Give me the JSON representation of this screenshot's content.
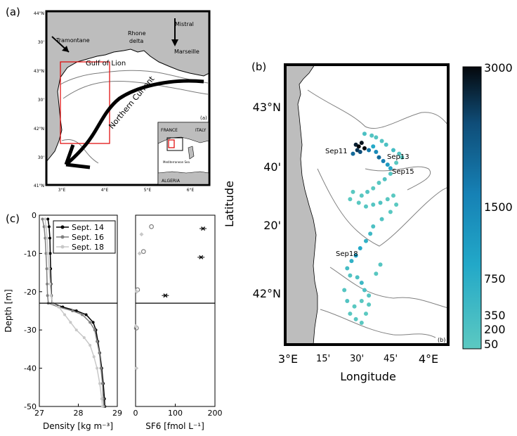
{
  "panel_a": {
    "label": "(a)",
    "lat_ticks": [
      "44°N",
      "30'",
      "43°N",
      "30'",
      "42°N",
      "30'",
      "41°N"
    ],
    "lon_ticks": [
      "3°E",
      "4°E",
      "5°E",
      "6°E"
    ],
    "names": {
      "tramontane": "Tramontane",
      "rhone": "Rhone",
      "delta": "delta",
      "mistral": "Mistral",
      "marseille": "Marseille",
      "gulf": "Gulf of Lion",
      "current": "Northern Current"
    },
    "inset": {
      "label": "(a)",
      "france": "FRANCE",
      "italy": "ITALY",
      "algeria": "ALGERIA",
      "sea": "Mediterranean Sea"
    }
  },
  "panel_b": {
    "label": "(b)",
    "corner_label": "(b)",
    "ylabel": "Latitude",
    "xlabel": "Longitude",
    "lat_ticks": [
      "43°N",
      "40'",
      "20'",
      "42°N"
    ],
    "lon_ticks": [
      "3°E",
      "15'",
      "30'",
      "45'",
      "4°E"
    ],
    "stations": [
      "Sep11",
      "Sep13",
      "Sep15",
      "Sep18"
    ],
    "colorbar_ticks": [
      "3000",
      "1500",
      "750",
      "350",
      "200",
      "50"
    ],
    "colors": {
      "low": "#4fc7c0",
      "mid": "#1a8cc0",
      "high": "#0a1420"
    }
  },
  "panel_c": {
    "label": "(c)",
    "ylabel": "Depth [m]",
    "xlabel_density": "Density [kg m⁻³]",
    "xlabel_sf6": "SF6 [fmol L⁻¹]",
    "mld_depth": -23
  },
  "chart_data": [
    {
      "type": "line",
      "title": "",
      "xlabel": "Density [kg m⁻³]",
      "ylabel": "Depth [m]",
      "xlim": [
        27,
        29
      ],
      "ylim": [
        -50,
        0
      ],
      "x_ticks": [
        27,
        28,
        29
      ],
      "y_ticks": [
        0,
        -10,
        -20,
        -30,
        -40,
        -50
      ],
      "legend_position": "top-right",
      "series": [
        {
          "name": "Sept. 14",
          "color": "#000000",
          "points": [
            [
              27.22,
              -1
            ],
            [
              27.25,
              -3
            ],
            [
              27.27,
              -6
            ],
            [
              27.28,
              -10
            ],
            [
              27.29,
              -14
            ],
            [
              27.3,
              -18
            ],
            [
              27.31,
              -21
            ],
            [
              27.33,
              -23
            ],
            [
              27.6,
              -24
            ],
            [
              27.95,
              -25
            ],
            [
              28.2,
              -26
            ],
            [
              28.38,
              -28
            ],
            [
              28.45,
              -30
            ],
            [
              28.5,
              -33
            ],
            [
              28.55,
              -36
            ],
            [
              28.6,
              -40
            ],
            [
              28.64,
              -44
            ],
            [
              28.67,
              -48
            ],
            [
              28.68,
              -50
            ]
          ]
        },
        {
          "name": "Sept. 16",
          "color": "#808080",
          "points": [
            [
              27.08,
              -1
            ],
            [
              27.12,
              -3
            ],
            [
              27.15,
              -6
            ],
            [
              27.17,
              -10
            ],
            [
              27.19,
              -14
            ],
            [
              27.2,
              -18
            ],
            [
              27.21,
              -21
            ],
            [
              27.23,
              -23
            ],
            [
              27.5,
              -24
            ],
            [
              27.85,
              -25
            ],
            [
              28.1,
              -26
            ],
            [
              28.3,
              -28
            ],
            [
              28.42,
              -30
            ],
            [
              28.48,
              -33
            ],
            [
              28.54,
              -36
            ],
            [
              28.58,
              -40
            ],
            [
              28.62,
              -44
            ],
            [
              28.64,
              -48
            ],
            [
              28.66,
              -50
            ]
          ]
        },
        {
          "name": "Sept. 18",
          "color": "#c8c8c8",
          "points": [
            [
              27.15,
              -1
            ],
            [
              27.17,
              -3
            ],
            [
              27.2,
              -6
            ],
            [
              27.22,
              -10
            ],
            [
              27.25,
              -14
            ],
            [
              27.28,
              -18
            ],
            [
              27.3,
              -21
            ],
            [
              27.34,
              -23
            ],
            [
              27.5,
              -24
            ],
            [
              27.65,
              -26
            ],
            [
              27.8,
              -28
            ],
            [
              27.95,
              -30
            ],
            [
              28.15,
              -32
            ],
            [
              28.3,
              -34
            ],
            [
              28.4,
              -37
            ],
            [
              28.48,
              -40
            ],
            [
              28.55,
              -44
            ],
            [
              28.6,
              -48
            ],
            [
              28.62,
              -50
            ]
          ]
        }
      ],
      "hline": -23
    },
    {
      "type": "scatter",
      "title": "",
      "xlabel": "SF6 [fmol L⁻¹]",
      "xlim": [
        0,
        200
      ],
      "ylim": [
        -50,
        0
      ],
      "x_ticks": [
        0,
        100,
        200
      ],
      "series": [
        {
          "name": "Sept. 14",
          "color": "#000000",
          "marker": "x",
          "points": [
            [
              170,
              -3.5
            ],
            [
              165,
              -11
            ],
            [
              75,
              -21
            ]
          ]
        },
        {
          "name": "Sept. 16",
          "color": "#808080",
          "marker": "o",
          "points": [
            [
              40,
              -3
            ],
            [
              20,
              -9.5
            ],
            [
              5,
              -19.5
            ],
            [
              2,
              -29.5
            ]
          ]
        },
        {
          "name": "Sept. 18",
          "color": "#c8c8c8",
          "marker": "d",
          "points": [
            [
              15,
              -5
            ],
            [
              10,
              -10
            ],
            [
              3,
              -20
            ],
            [
              1,
              -29
            ],
            [
              2,
              -40
            ]
          ]
        }
      ],
      "hline": -23
    },
    {
      "type": "scatter",
      "title": "",
      "xlabel": "Longitude",
      "ylabel": "Latitude",
      "xlim": [
        2.97,
        4.1
      ],
      "ylim": [
        41.63,
        43.17
      ],
      "colorbar": {
        "label_ticks": [
          50,
          200,
          350,
          750,
          1500,
          3000
        ],
        "range": [
          50,
          3000
        ]
      },
      "points": [
        [
          3.46,
          42.73,
          2800
        ],
        [
          3.48,
          42.72,
          3000
        ],
        [
          3.5,
          42.74,
          2900
        ],
        [
          3.47,
          42.7,
          2600
        ],
        [
          3.52,
          42.71,
          3000
        ],
        [
          3.44,
          42.68,
          2000
        ],
        [
          3.49,
          42.69,
          2400
        ],
        [
          3.55,
          42.7,
          1800
        ],
        [
          3.58,
          42.72,
          900
        ],
        [
          3.6,
          42.69,
          1500
        ],
        [
          3.62,
          42.66,
          2000
        ],
        [
          3.65,
          42.64,
          1700
        ],
        [
          3.68,
          42.62,
          1200
        ],
        [
          3.7,
          42.6,
          900
        ],
        [
          3.52,
          42.79,
          300
        ],
        [
          3.57,
          42.78,
          200
        ],
        [
          3.6,
          42.77,
          150
        ],
        [
          3.64,
          42.75,
          200
        ],
        [
          3.67,
          42.73,
          300
        ],
        [
          3.72,
          42.7,
          400
        ],
        [
          3.76,
          42.68,
          200
        ],
        [
          3.78,
          42.66,
          100
        ],
        [
          3.74,
          42.63,
          80
        ],
        [
          3.7,
          42.57,
          150
        ],
        [
          3.66,
          42.54,
          200
        ],
        [
          3.62,
          42.52,
          100
        ],
        [
          3.58,
          42.49,
          80
        ],
        [
          3.54,
          42.47,
          150
        ],
        [
          3.5,
          42.45,
          100
        ],
        [
          3.44,
          42.47,
          80
        ],
        [
          3.42,
          42.43,
          60
        ],
        [
          3.48,
          42.41,
          90
        ],
        [
          3.53,
          42.39,
          120
        ],
        [
          3.58,
          42.4,
          150
        ],
        [
          3.63,
          42.41,
          200
        ],
        [
          3.68,
          42.43,
          100
        ],
        [
          3.72,
          42.45,
          80
        ],
        [
          3.74,
          42.4,
          60
        ],
        [
          3.7,
          42.36,
          90
        ],
        [
          3.64,
          42.32,
          200
        ],
        [
          3.58,
          42.28,
          300
        ],
        [
          3.56,
          42.24,
          500
        ],
        [
          3.53,
          42.2,
          700
        ],
        [
          3.49,
          42.16,
          900
        ],
        [
          3.46,
          42.12,
          1100
        ],
        [
          3.43,
          42.09,
          700
        ],
        [
          3.4,
          42.05,
          400
        ],
        [
          3.42,
          42.01,
          200
        ],
        [
          3.47,
          42.0,
          300
        ],
        [
          3.5,
          41.97,
          500
        ],
        [
          3.52,
          41.93,
          300
        ],
        [
          3.55,
          41.9,
          150
        ],
        [
          3.5,
          41.87,
          100
        ],
        [
          3.45,
          41.84,
          80
        ],
        [
          3.42,
          41.8,
          100
        ],
        [
          3.46,
          41.77,
          120
        ],
        [
          3.5,
          41.75,
          80
        ],
        [
          3.53,
          41.8,
          60
        ],
        [
          3.55,
          41.85,
          100
        ],
        [
          3.4,
          41.87,
          200
        ],
        [
          3.38,
          41.93,
          150
        ],
        [
          3.6,
          42.02,
          100
        ],
        [
          3.63,
          42.07,
          150
        ]
      ]
    }
  ]
}
